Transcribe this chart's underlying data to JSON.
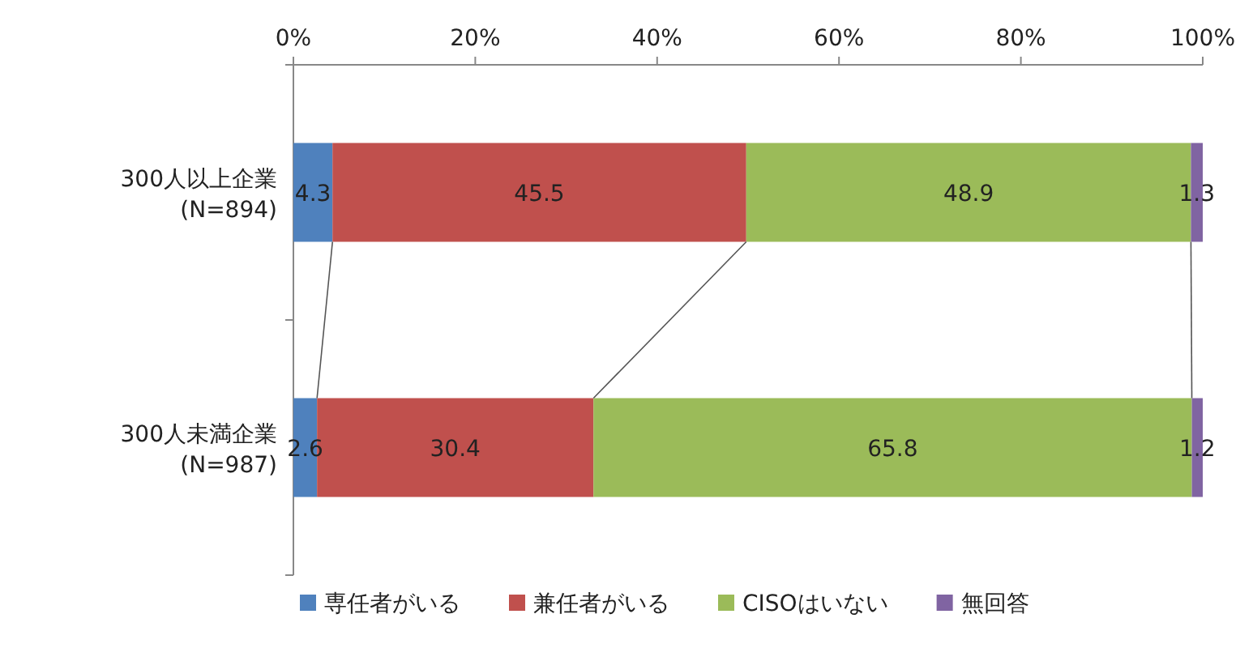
{
  "chart_data": {
    "type": "bar",
    "orientation": "horizontal",
    "stacked": true,
    "categories": [
      "300人以上企業\n(N=894)",
      "300人未満企業\n(N=987)"
    ],
    "series": [
      {
        "name": "専任者がいる",
        "color": "#4f81bd",
        "values": [
          4.3,
          2.6
        ]
      },
      {
        "name": "兼任者がいる",
        "color": "#c0504d",
        "values": [
          45.5,
          30.4
        ]
      },
      {
        "name": "CISOはいない",
        "color": "#9bbb59",
        "values": [
          48.9,
          65.8
        ]
      },
      {
        "name": "無回答",
        "color": "#8064a2",
        "values": [
          1.3,
          1.2
        ]
      }
    ],
    "xlim": [
      0,
      100
    ],
    "xticks": [
      {
        "value": 0,
        "label": "0%"
      },
      {
        "value": 20,
        "label": "20%"
      },
      {
        "value": 40,
        "label": "40%"
      },
      {
        "value": 60,
        "label": "60%"
      },
      {
        "value": 80,
        "label": "80%"
      },
      {
        "value": 100,
        "label": "100%"
      }
    ],
    "data_labels": true,
    "legend": "bottom",
    "grid": false
  }
}
